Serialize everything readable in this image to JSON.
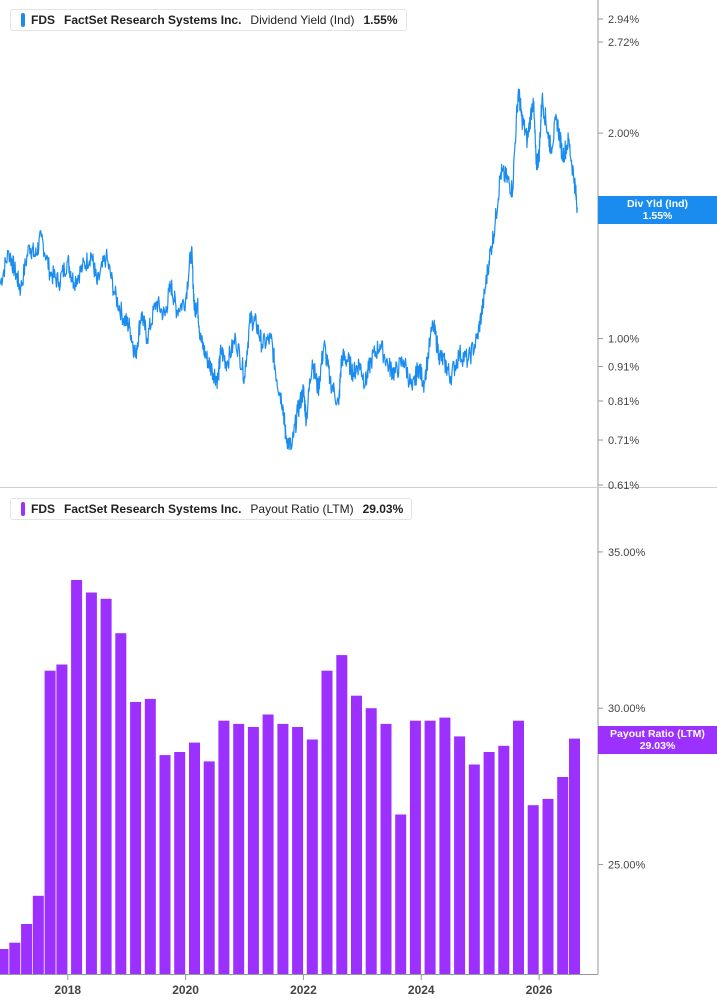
{
  "colors": {
    "yield": "#1a8cf0",
    "payout": "#9b30ff",
    "axis": "#999999",
    "text": "#444444"
  },
  "panel1": {
    "ticker": "FDS",
    "company": "FactSet Research Systems Inc.",
    "metric": "Dividend Yield (Ind)",
    "value": "1.55%",
    "tag_label": "Div Yld (Ind)",
    "tag_value": "1.55%",
    "yticks": [
      "2.94%",
      "2.72%",
      "2.00%",
      "1.00%",
      "0.91%",
      "0.81%",
      "0.71%",
      "0.61%"
    ]
  },
  "panel2": {
    "ticker": "FDS",
    "company": "FactSet Research Systems Inc.",
    "metric": "Payout Ratio (LTM)",
    "value": "29.03%",
    "tag_label": "Payout Ratio (LTM)",
    "tag_value": "29.03%",
    "yticks": [
      "35.00%",
      "30.00%",
      "25.00%"
    ]
  },
  "xaxis": {
    "ticks": [
      "2018",
      "2020",
      "2022",
      "2024",
      "2026"
    ]
  },
  "chart_data": [
    {
      "type": "line",
      "yscale": "log",
      "ylim": [
        0.61,
        3.0
      ],
      "series": [
        {
          "name": "Div Yld (Ind)",
          "x": [
            2016.85,
            2017.0,
            2017.1,
            2017.2,
            2017.35,
            2017.45,
            2017.55,
            2017.7,
            2017.85,
            2018.0,
            2018.1,
            2018.25,
            2018.4,
            2018.5,
            2018.65,
            2018.8,
            2018.95,
            2019.05,
            2019.15,
            2019.25,
            2019.35,
            2019.5,
            2019.65,
            2019.75,
            2019.85,
            2020.0,
            2020.1,
            2020.15,
            2020.2,
            2020.25,
            2020.35,
            2020.45,
            2020.55,
            2020.6,
            2020.7,
            2020.85,
            2021.0,
            2021.1,
            2021.2,
            2021.3,
            2021.45,
            2021.55,
            2021.65,
            2021.7,
            2021.8,
            2021.9,
            2022.0,
            2022.05,
            2022.15,
            2022.25,
            2022.35,
            2022.45,
            2022.6,
            2022.65,
            2022.75,
            2022.85,
            2022.95,
            2023.05,
            2023.15,
            2023.3,
            2023.45,
            2023.55,
            2023.7,
            2023.85,
            2023.95,
            2024.05,
            2024.2,
            2024.3,
            2024.4,
            2024.5,
            2024.65,
            2024.8,
            2024.95,
            2025.05,
            2025.15,
            2025.25,
            2025.35,
            2025.45,
            2025.55,
            2025.65,
            2025.7,
            2025.8,
            2025.9,
            2025.95,
            2026.0,
            2026.05,
            2026.15,
            2026.2,
            2026.3,
            2026.4,
            2026.5,
            2026.6,
            2026.65
          ],
          "values": [
            1.2,
            1.34,
            1.26,
            1.18,
            1.37,
            1.32,
            1.41,
            1.25,
            1.21,
            1.3,
            1.21,
            1.27,
            1.33,
            1.2,
            1.32,
            1.16,
            1.07,
            1.04,
            0.94,
            1.09,
            1.0,
            1.13,
            1.08,
            1.2,
            1.1,
            1.14,
            1.35,
            1.1,
            1.13,
            1.0,
            0.94,
            0.9,
            0.87,
            0.96,
            0.92,
            1.0,
            0.88,
            1.07,
            1.05,
            0.98,
            1.0,
            0.87,
            0.8,
            0.72,
            0.69,
            0.78,
            0.84,
            0.76,
            0.93,
            0.84,
            0.98,
            0.87,
            0.8,
            0.94,
            0.93,
            0.89,
            0.92,
            0.86,
            0.93,
            0.98,
            0.91,
            0.89,
            0.93,
            0.84,
            0.91,
            0.86,
            1.05,
            0.95,
            0.92,
            0.88,
            0.95,
            0.93,
            1.0,
            1.12,
            1.3,
            1.46,
            1.75,
            1.72,
            1.65,
            2.32,
            2.12,
            1.95,
            2.25,
            1.8,
            1.85,
            2.25,
            2.0,
            1.9,
            2.1,
            1.85,
            1.95,
            1.7,
            1.55
          ]
        }
      ],
      "xlim": [
        2016.85,
        2027.0
      ]
    },
    {
      "type": "bar",
      "ylim": [
        21.5,
        36.5
      ],
      "x": [
        2016.85,
        2017.05,
        2017.25,
        2017.45,
        2017.65,
        2017.85,
        2018.1,
        2018.35,
        2018.6,
        2018.85,
        2019.1,
        2019.35,
        2019.6,
        2019.85,
        2020.1,
        2020.35,
        2020.6,
        2020.85,
        2021.1,
        2021.35,
        2021.6,
        2021.85,
        2022.1,
        2022.35,
        2022.6,
        2022.85,
        2023.1,
        2023.35,
        2023.6,
        2023.85,
        2024.1,
        2024.35,
        2024.6,
        2024.85,
        2025.1,
        2025.35,
        2025.6,
        2025.85,
        2026.1,
        2026.35,
        2026.55
      ],
      "series": [
        {
          "name": "Payout Ratio (LTM)",
          "values": [
            22.3,
            22.5,
            23.1,
            24.0,
            31.2,
            31.4,
            34.1,
            33.7,
            33.5,
            32.4,
            30.2,
            30.3,
            28.5,
            28.6,
            28.9,
            28.3,
            29.6,
            29.5,
            29.4,
            29.8,
            29.5,
            29.4,
            29.0,
            31.2,
            31.7,
            30.4,
            30.0,
            29.5,
            26.6,
            29.6,
            29.6,
            29.7,
            29.1,
            28.2,
            28.6,
            28.8,
            29.6,
            26.9,
            27.1,
            27.8,
            29.03
          ]
        }
      ],
      "xlim": [
        2016.85,
        2027.0
      ]
    }
  ]
}
